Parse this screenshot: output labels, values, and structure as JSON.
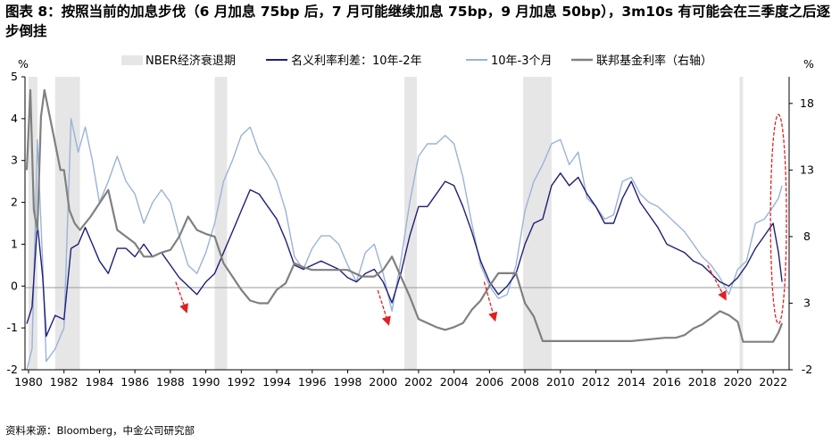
{
  "title": "图表 8：按照当前的加息步伐（6 月加息 75bp 后，7 月可能继续加息 75bp，9 月加息 50bp），3m10s 有可能会在三季度之后逐步倒挂",
  "source": "资料来源：Bloomberg，中金公司研究部",
  "colors": {
    "recession": "#e6e6e6",
    "spread_10y2y": "#1f1f7a",
    "spread_10y3m": "#9ab3d6",
    "fed_funds": "#808080",
    "annotation": "#e02020"
  },
  "chart_data": {
    "type": "line",
    "left_axis_unit": "%",
    "right_axis_unit": "%",
    "x_range": [
      1979.8,
      2022.9
    ],
    "left_ylim": [
      -2,
      5
    ],
    "right_ylim": [
      -2,
      20
    ],
    "x_ticks": [
      "1980",
      "1982",
      "1984",
      "1986",
      "1988",
      "1990",
      "1992",
      "1994",
      "1996",
      "1998",
      "2000",
      "2002",
      "2004",
      "2006",
      "2008",
      "2010",
      "2012",
      "2014",
      "2016",
      "2018",
      "2020",
      "2022"
    ],
    "left_ticks": [
      "-2",
      "-1",
      "0",
      "1",
      "2",
      "3",
      "4",
      "5"
    ],
    "right_ticks": [
      "-2",
      "3",
      "8",
      "13",
      "18"
    ],
    "legend": [
      "NBER经济衰退期",
      "名义利率利差：10年-2年",
      "10年-3个月",
      "联邦基金利率（右轴）"
    ],
    "recessions": [
      [
        1980.0,
        1980.5
      ],
      [
        1981.5,
        1982.9
      ],
      [
        1990.5,
        1991.2
      ],
      [
        2001.2,
        2001.9
      ],
      [
        2007.9,
        2009.5
      ],
      [
        2020.1,
        2020.3
      ]
    ],
    "series": [
      {
        "name": "名义利率利差：10年-2年",
        "axis": "left",
        "x": [
          1979.9,
          1980.2,
          1980.5,
          1980.8,
          1981.0,
          1981.5,
          1982.0,
          1982.4,
          1982.8,
          1983.2,
          1983.6,
          1984.0,
          1984.5,
          1985.0,
          1985.5,
          1986.0,
          1986.5,
          1987.0,
          1987.5,
          1988.0,
          1988.5,
          1989.0,
          1989.5,
          1990.0,
          1990.5,
          1991.0,
          1991.5,
          1992.0,
          1992.5,
          1993.0,
          1993.5,
          1994.0,
          1994.5,
          1995.0,
          1995.5,
          1996.0,
          1996.5,
          1997.0,
          1997.5,
          1998.0,
          1998.5,
          1999.0,
          1999.5,
          2000.0,
          2000.5,
          2001.0,
          2001.5,
          2002.0,
          2002.5,
          2003.0,
          2003.5,
          2004.0,
          2004.5,
          2005.0,
          2005.5,
          2006.0,
          2006.5,
          2007.0,
          2007.5,
          2008.0,
          2008.5,
          2009.0,
          2009.5,
          2010.0,
          2010.5,
          2011.0,
          2011.5,
          2012.0,
          2012.5,
          2013.0,
          2013.5,
          2014.0,
          2014.5,
          2015.0,
          2015.5,
          2016.0,
          2016.5,
          2017.0,
          2017.5,
          2018.0,
          2018.5,
          2019.0,
          2019.5,
          2020.0,
          2020.5,
          2021.0,
          2021.5,
          2022.0,
          2022.3,
          2022.5
        ],
        "y": [
          -0.9,
          -0.5,
          1.5,
          0.2,
          -1.2,
          -0.7,
          -0.8,
          0.9,
          1.0,
          1.4,
          1.0,
          0.6,
          0.3,
          0.9,
          0.9,
          0.7,
          1.0,
          0.7,
          0.8,
          0.5,
          0.2,
          0.0,
          -0.2,
          0.1,
          0.3,
          0.8,
          1.3,
          1.8,
          2.3,
          2.2,
          1.9,
          1.6,
          1.1,
          0.5,
          0.4,
          0.5,
          0.6,
          0.5,
          0.4,
          0.2,
          0.1,
          0.3,
          0.4,
          0.1,
          -0.4,
          0.3,
          1.2,
          1.9,
          1.9,
          2.2,
          2.5,
          2.4,
          1.9,
          1.3,
          0.6,
          0.1,
          -0.2,
          0.0,
          0.3,
          1.0,
          1.5,
          1.6,
          2.4,
          2.7,
          2.4,
          2.6,
          2.2,
          1.9,
          1.5,
          1.5,
          2.1,
          2.5,
          2.0,
          1.7,
          1.4,
          1.0,
          0.9,
          0.8,
          0.6,
          0.5,
          0.3,
          0.1,
          0.0,
          0.2,
          0.5,
          0.9,
          1.2,
          1.5,
          0.8,
          0.1
        ]
      },
      {
        "name": "10年-3个月",
        "axis": "left",
        "x": [
          1979.9,
          1980.2,
          1980.5,
          1980.8,
          1981.0,
          1981.5,
          1982.0,
          1982.4,
          1982.8,
          1983.2,
          1983.6,
          1984.0,
          1984.5,
          1985.0,
          1985.5,
          1986.0,
          1986.5,
          1987.0,
          1987.5,
          1988.0,
          1988.5,
          1989.0,
          1989.5,
          1990.0,
          1990.5,
          1991.0,
          1991.5,
          1992.0,
          1992.5,
          1993.0,
          1993.5,
          1994.0,
          1994.5,
          1995.0,
          1995.5,
          1996.0,
          1996.5,
          1997.0,
          1997.5,
          1998.0,
          1998.5,
          1999.0,
          1999.5,
          2000.0,
          2000.5,
          2001.0,
          2001.5,
          2002.0,
          2002.5,
          2003.0,
          2003.5,
          2004.0,
          2004.5,
          2005.0,
          2005.5,
          2006.0,
          2006.5,
          2007.0,
          2007.5,
          2008.0,
          2008.5,
          2009.0,
          2009.5,
          2010.0,
          2010.5,
          2011.0,
          2011.5,
          2012.0,
          2012.5,
          2013.0,
          2013.5,
          2014.0,
          2014.5,
          2015.0,
          2015.5,
          2016.0,
          2016.5,
          2017.0,
          2017.5,
          2018.0,
          2018.5,
          2019.0,
          2019.5,
          2020.0,
          2020.5,
          2021.0,
          2021.5,
          2022.0,
          2022.3,
          2022.5
        ],
        "y": [
          -2.0,
          -1.5,
          3.5,
          0.5,
          -1.8,
          -1.5,
          -1.0,
          4.0,
          3.2,
          3.8,
          3.0,
          2.0,
          2.5,
          3.1,
          2.5,
          2.2,
          1.5,
          2.0,
          2.3,
          2.0,
          1.2,
          0.5,
          0.3,
          0.8,
          1.5,
          2.5,
          3.0,
          3.6,
          3.8,
          3.2,
          2.9,
          2.5,
          1.8,
          0.7,
          0.4,
          0.9,
          1.2,
          1.2,
          1.0,
          0.5,
          0.1,
          0.8,
          1.0,
          0.3,
          -0.6,
          0.6,
          2.0,
          3.1,
          3.4,
          3.4,
          3.6,
          3.4,
          2.6,
          1.5,
          0.5,
          0.0,
          -0.3,
          -0.2,
          0.5,
          1.8,
          2.5,
          2.9,
          3.4,
          3.5,
          2.9,
          3.2,
          2.1,
          1.9,
          1.6,
          1.7,
          2.5,
          2.6,
          2.2,
          2.0,
          1.9,
          1.7,
          1.5,
          1.3,
          1.0,
          0.7,
          0.5,
          0.2,
          -0.2,
          0.4,
          0.6,
          1.5,
          1.6,
          1.9,
          2.1,
          2.4
        ]
      },
      {
        "name": "联邦基金利率（右轴）",
        "axis": "right",
        "x": [
          1979.9,
          1980.1,
          1980.3,
          1980.5,
          1980.7,
          1980.9,
          1981.2,
          1981.5,
          1981.8,
          1982.0,
          1982.3,
          1982.6,
          1982.9,
          1983.5,
          1984.0,
          1984.5,
          1985.0,
          1985.5,
          1986.0,
          1986.5,
          1987.0,
          1987.5,
          1988.0,
          1988.5,
          1989.0,
          1989.5,
          1990.0,
          1990.5,
          1991.0,
          1991.5,
          1992.0,
          1992.5,
          1993.0,
          1993.5,
          1994.0,
          1994.5,
          1995.0,
          1995.5,
          1996.0,
          1997.0,
          1998.0,
          1998.8,
          1999.5,
          2000.0,
          2000.5,
          2001.0,
          2001.5,
          2002.0,
          2003.0,
          2003.5,
          2004.0,
          2004.5,
          2005.0,
          2005.5,
          2006.0,
          2006.5,
          2007.0,
          2007.5,
          2008.0,
          2008.5,
          2009.0,
          2010.0,
          2012.0,
          2014.0,
          2015.9,
          2016.5,
          2017.0,
          2017.5,
          2018.0,
          2018.5,
          2019.0,
          2019.5,
          2020.0,
          2020.3,
          2021.0,
          2022.0,
          2022.3,
          2022.5
        ],
        "y": [
          13,
          19,
          10,
          8.5,
          17,
          19,
          17,
          15,
          13,
          13,
          10,
          9,
          8.5,
          9.5,
          10.5,
          11.5,
          8.5,
          8,
          7.5,
          6.5,
          6.5,
          6.8,
          7,
          8,
          9.5,
          8.5,
          8.2,
          8,
          6,
          5,
          4,
          3.2,
          3,
          3,
          4,
          4.5,
          6,
          5.7,
          5.5,
          5.5,
          5.5,
          5,
          5,
          5.5,
          6.5,
          5,
          3.5,
          1.8,
          1.2,
          1,
          1.2,
          1.5,
          2.5,
          3.2,
          4.3,
          5.25,
          5.25,
          5.25,
          3,
          2,
          0.15,
          0.15,
          0.15,
          0.15,
          0.4,
          0.4,
          0.6,
          1.1,
          1.4,
          1.9,
          2.4,
          2.1,
          1.6,
          0.1,
          0.1,
          0.1,
          0.8,
          1.5
        ]
      }
    ],
    "annotations": [
      {
        "type": "arrow",
        "from": [
          1988.3,
          0.1
        ],
        "to": [
          1988.9,
          -0.6
        ]
      },
      {
        "type": "arrow",
        "from": [
          1999.7,
          -0.1
        ],
        "to": [
          2000.3,
          -0.9
        ]
      },
      {
        "type": "arrow",
        "from": [
          2005.7,
          0.1
        ],
        "to": [
          2006.3,
          -0.8
        ]
      },
      {
        "type": "arrow",
        "from": [
          2018.3,
          0.5
        ],
        "to": [
          2019.3,
          -0.3
        ]
      },
      {
        "type": "ellipse",
        "center": [
          2022.3,
          1.6
        ],
        "rx_years": 0.45,
        "ry": 2.5
      }
    ]
  }
}
